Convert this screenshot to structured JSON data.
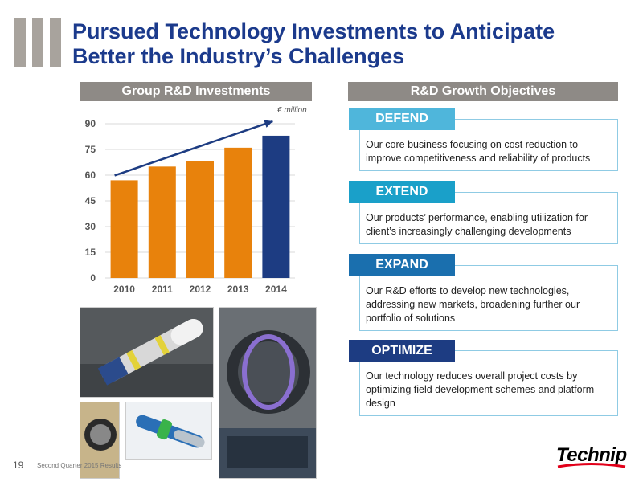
{
  "slide": {
    "title_line1": "Pursued Technology Investments to Anticipate",
    "title_line2": "Better the Industry’s Challenges",
    "page_number": "19",
    "footer_text": "Second Quarter 2015 Results",
    "logo_text": "Technip"
  },
  "left_panel": {
    "header": "Group R&D Investments",
    "unit_label": "€ million"
  },
  "right_panel": {
    "header": "R&D Growth Objectives",
    "objectives": [
      {
        "label": "DEFEND",
        "color": "#4fb6db",
        "text": "Our core business focusing on cost reduction to improve competitiveness and reliability of products"
      },
      {
        "label": "EXTEND",
        "color": "#1aa0c9",
        "text": "Our products’ performance, enabling utilization for client’s increasingly challenging developments"
      },
      {
        "label": "EXPAND",
        "color": "#1a6fae",
        "text": "Our R&D efforts to develop new technologies, addressing new markets, broadening further our portfolio of solutions"
      },
      {
        "label": "OPTIMIZE",
        "color": "#1d3c82",
        "text": "Our technology reduces overall project costs by optimizing field development schemes and platform design"
      }
    ]
  },
  "chart_data": {
    "type": "bar",
    "categories": [
      "2010",
      "2011",
      "2012",
      "2013",
      "2014"
    ],
    "values": [
      57,
      65,
      68,
      76,
      83
    ],
    "colors": [
      "#e8820c",
      "#e8820c",
      "#e8820c",
      "#e8820c",
      "#1d3c82"
    ],
    "ylim": [
      0,
      90
    ],
    "yticks": [
      "0",
      "15",
      "30",
      "45",
      "60",
      "75",
      "90"
    ],
    "ytick_values": [
      0,
      15,
      30,
      45,
      60,
      75,
      90
    ],
    "grid": true,
    "trend_arrow": true
  }
}
